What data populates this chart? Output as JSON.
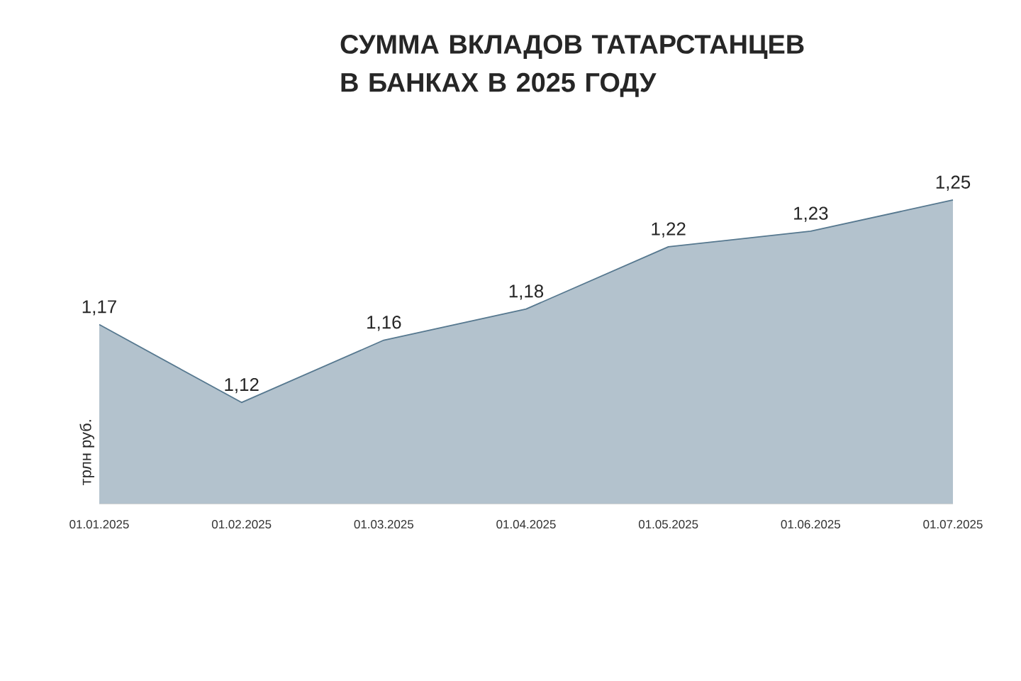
{
  "chart_data": {
    "type": "area",
    "title": "СУММА ВКЛАДОВ ТАТАРСТАНЦЕВ В БАНКАХ В 2025 ГОДУ",
    "ylabel": "трлн руб.",
    "categories": [
      "01.01.2025",
      "01.02.2025",
      "01.03.2025",
      "01.04.2025",
      "01.05.2025",
      "01.06.2025",
      "01.07.2025"
    ],
    "values": [
      1.17,
      1.12,
      1.16,
      1.18,
      1.22,
      1.23,
      1.25
    ],
    "value_labels": [
      "1,17",
      "1,12",
      "1,16",
      "1,18",
      "1,22",
      "1,23",
      "1,25"
    ],
    "color": "#56788f"
  }
}
